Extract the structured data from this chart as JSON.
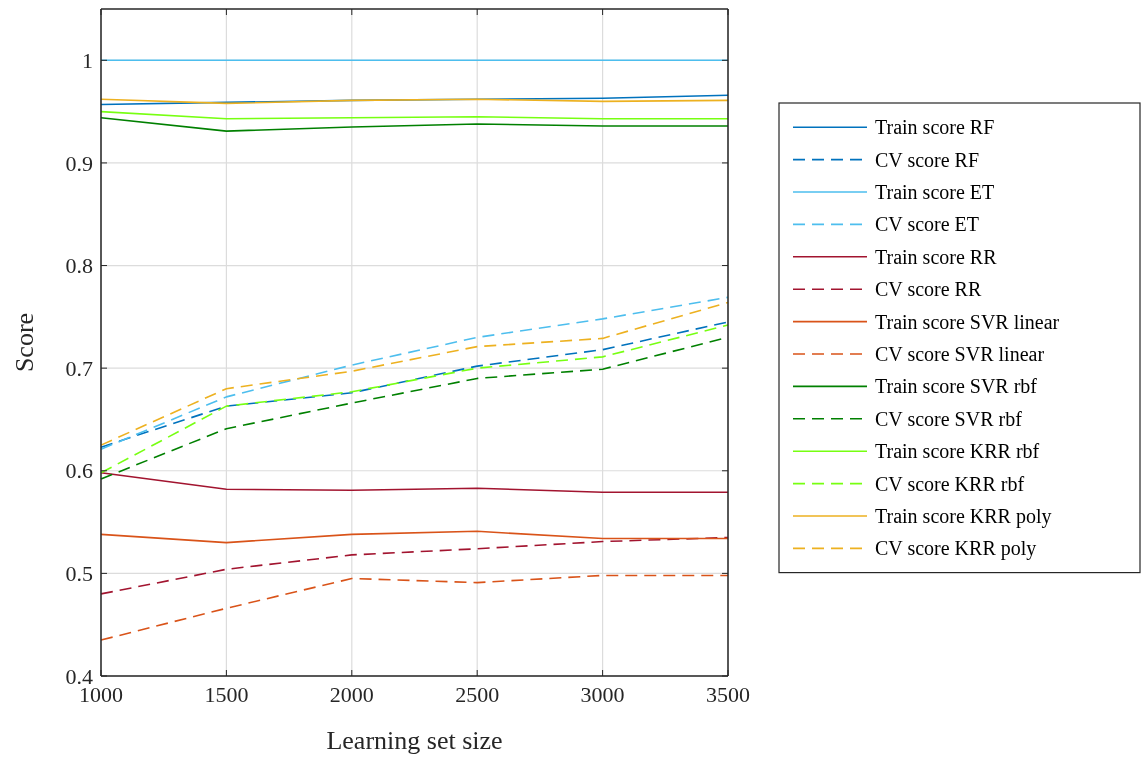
{
  "chart_data": {
    "type": "line",
    "xlabel": "Learning set size",
    "ylabel": "Score",
    "x": [
      1000,
      1500,
      2000,
      2500,
      3000,
      3500
    ],
    "xlim": [
      1000,
      3500
    ],
    "xticks": [
      1000,
      1500,
      2000,
      2500,
      3000,
      3500
    ],
    "ylim": [
      0.4,
      1.05
    ],
    "yticks": [
      {
        "value": 0.4,
        "label": "0.4"
      },
      {
        "value": 0.5,
        "label": "0.5"
      },
      {
        "value": 0.6,
        "label": "0.6"
      },
      {
        "value": 0.7,
        "label": "0.7"
      },
      {
        "value": 0.8,
        "label": "0.8"
      },
      {
        "value": 0.9,
        "label": "0.9"
      },
      {
        "value": 1,
        "label": "1"
      }
    ],
    "grid": true,
    "legend": "right",
    "marker": "none",
    "series": [
      {
        "name": "Train score RF",
        "color": "#0072bd",
        "line_style": "solid",
        "values": [
          0.957,
          0.959,
          0.961,
          0.962,
          0.963,
          0.966
        ]
      },
      {
        "name": "CV score RF",
        "color": "#0072bd",
        "line_style": "dashed",
        "values": [
          0.623,
          0.663,
          0.676,
          0.702,
          0.718,
          0.745
        ]
      },
      {
        "name": "Train score ET",
        "color": "#4dbeee",
        "line_style": "solid",
        "values": [
          1,
          1,
          1,
          1,
          1,
          1
        ]
      },
      {
        "name": "CV score ET",
        "color": "#4dbeee",
        "line_style": "dashed",
        "values": [
          0.621,
          0.672,
          0.703,
          0.73,
          0.748,
          0.769
        ]
      },
      {
        "name": "Train score RR",
        "color": "#a2142f",
        "line_style": "solid",
        "values": [
          0.598,
          0.582,
          0.581,
          0.583,
          0.579,
          0.579
        ]
      },
      {
        "name": "CV score RR",
        "color": "#a2142f",
        "line_style": "dashed",
        "values": [
          0.48,
          0.504,
          0.518,
          0.524,
          0.531,
          0.535
        ]
      },
      {
        "name": "Train score SVR linear",
        "color": "#d95319",
        "line_style": "solid",
        "values": [
          0.538,
          0.53,
          0.538,
          0.541,
          0.534,
          0.534
        ]
      },
      {
        "name": "CV score SVR linear",
        "color": "#d95319",
        "line_style": "dashed",
        "values": [
          0.435,
          0.466,
          0.495,
          0.491,
          0.498,
          0.498
        ]
      },
      {
        "name": "Train score SVR rbf",
        "color": "#008000",
        "line_style": "solid",
        "values": [
          0.944,
          0.931,
          0.935,
          0.938,
          0.936,
          0.936
        ]
      },
      {
        "name": "CV score SVR rbf",
        "color": "#008000",
        "line_style": "dashed",
        "values": [
          0.592,
          0.641,
          0.666,
          0.69,
          0.699,
          0.73
        ]
      },
      {
        "name": "Train score KRR rbf",
        "color": "#77ff11",
        "line_style": "solid",
        "values": [
          0.95,
          0.943,
          0.944,
          0.945,
          0.943,
          0.943
        ]
      },
      {
        "name": "CV score KRR rbf",
        "color": "#77ff11",
        "line_style": "dashed",
        "values": [
          0.598,
          0.663,
          0.677,
          0.7,
          0.711,
          0.742
        ]
      },
      {
        "name": "Train score KRR poly",
        "color": "#edb120",
        "line_style": "solid",
        "values": [
          0.962,
          0.958,
          0.961,
          0.962,
          0.96,
          0.961
        ]
      },
      {
        "name": "CV score KRR poly",
        "color": "#edb120",
        "line_style": "dashed",
        "values": [
          0.625,
          0.68,
          0.697,
          0.721,
          0.729,
          0.764
        ]
      }
    ]
  }
}
